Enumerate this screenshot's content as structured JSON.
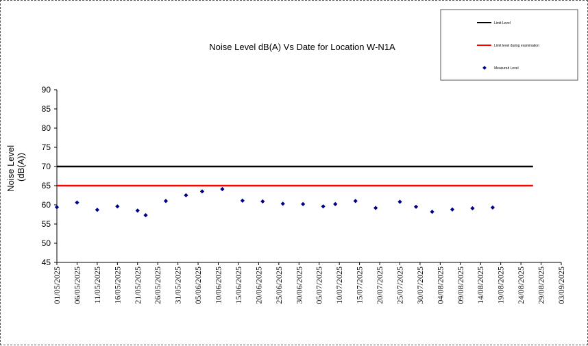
{
  "chart_data": {
    "type": "scatter",
    "title": "Noise Level dB(A) Vs Date for Location W-N1A",
    "ylabel": [
      "Noise Level",
      "(dB(A))"
    ],
    "xlabel": "",
    "ylim": [
      45,
      90
    ],
    "yticks": [
      45,
      50,
      55,
      60,
      65,
      70,
      75,
      80,
      85,
      90
    ],
    "xlim": [
      "2025-05-01",
      "2025-09-03"
    ],
    "xtick_labels": [
      "01/05/2025",
      "06/05/2025",
      "11/05/2025",
      "16/05/2025",
      "21/05/2025",
      "26/05/2025",
      "31/05/2025",
      "05/06/2025",
      "10/06/2025",
      "15/06/2025",
      "20/06/2025",
      "25/06/2025",
      "30/06/2025",
      "05/07/2025",
      "10/07/2025",
      "15/07/2025",
      "20/07/2025",
      "25/07/2025",
      "30/07/2025",
      "04/08/2025",
      "09/08/2025",
      "14/08/2025",
      "19/08/2025",
      "24/08/2025",
      "29/08/2025",
      "03/09/2025"
    ],
    "grid": false,
    "legend_position": "top-right",
    "series": [
      {
        "name": "Limit Level",
        "kind": "line",
        "color": "#000000",
        "x": [
          "2025-05-01",
          "2025-08-27"
        ],
        "y": [
          70,
          70
        ]
      },
      {
        "name": "Limit level during examination",
        "kind": "line",
        "color": "#ff0000",
        "x": [
          "2025-05-01",
          "2025-08-27"
        ],
        "y": [
          65,
          65
        ]
      },
      {
        "name": "Measured Level",
        "kind": "scatter",
        "color": "#00008b",
        "x": [
          "2025-05-01",
          "2025-05-06",
          "2025-05-11",
          "2025-05-16",
          "2025-05-21",
          "2025-05-23",
          "2025-05-28",
          "2025-06-02",
          "2025-06-06",
          "2025-06-11",
          "2025-06-16",
          "2025-06-21",
          "2025-06-26",
          "2025-07-01",
          "2025-07-06",
          "2025-07-09",
          "2025-07-14",
          "2025-07-19",
          "2025-07-25",
          "2025-07-29",
          "2025-08-02",
          "2025-08-07",
          "2025-08-12",
          "2025-08-17"
        ],
        "y": [
          59.4,
          60.6,
          58.7,
          59.6,
          58.5,
          57.3,
          61.0,
          62.5,
          63.5,
          64.1,
          61.1,
          60.9,
          60.3,
          60.2,
          59.6,
          60.2,
          61.0,
          59.2,
          60.8,
          59.5,
          58.2,
          58.8,
          59.1,
          59.3
        ]
      }
    ]
  }
}
